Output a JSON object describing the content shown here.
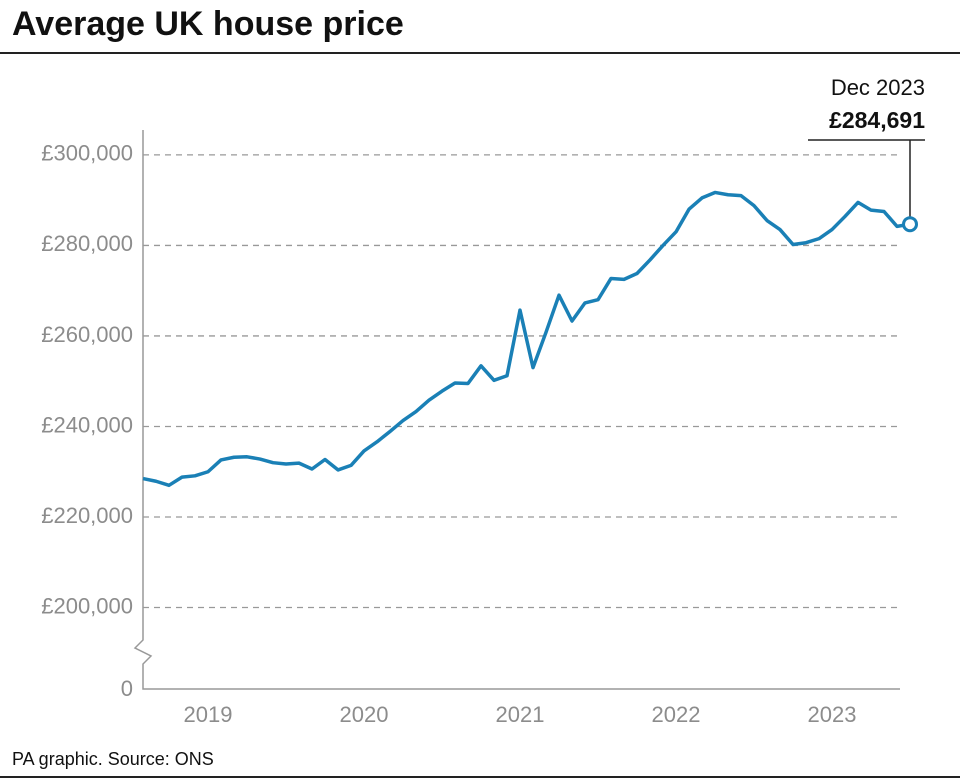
{
  "chart_data": {
    "type": "line",
    "title": "Average UK house price",
    "source": "PA graphic. Source: ONS",
    "categories": [
      null,
      null,
      null,
      null,
      null,
      "2019",
      null,
      null,
      null,
      null,
      null,
      null,
      null,
      null,
      null,
      null,
      null,
      "2020",
      null,
      null,
      null,
      null,
      null,
      null,
      null,
      null,
      null,
      null,
      null,
      "2021",
      null,
      null,
      null,
      null,
      null,
      null,
      null,
      null,
      null,
      null,
      null,
      "2022",
      null,
      null,
      null,
      null,
      null,
      null,
      null,
      null,
      null,
      null,
      null,
      "2023",
      null,
      null,
      null,
      null,
      null,
      null
    ],
    "series": [
      {
        "name": "Average UK house price",
        "color": "#1a80b6",
        "values": [
          228500,
          227900,
          227000,
          228800,
          229100,
          230000,
          232600,
          233200,
          233300,
          232800,
          232000,
          231700,
          231900,
          230600,
          232700,
          230400,
          231400,
          234600,
          236600,
          238900,
          241300,
          243300,
          245800,
          247800,
          249600,
          249500,
          253400,
          250200,
          251200,
          265700,
          253000,
          260800,
          269000,
          263300,
          267300,
          268000,
          272700,
          272500,
          273800,
          276800,
          280000,
          283000,
          288000,
          290500,
          291700,
          291200,
          291000,
          288800,
          285500,
          283500,
          280200,
          280600,
          281500,
          283500,
          286400,
          289500,
          287800,
          287500,
          284200,
          284691
        ],
        "value_labels": [
          null,
          null,
          null,
          null,
          null,
          null,
          null,
          null,
          null,
          null,
          null,
          null,
          null,
          null,
          null,
          null,
          null,
          null,
          null,
          null,
          null,
          null,
          null,
          null,
          null,
          null,
          null,
          null,
          null,
          null,
          null,
          null,
          null,
          null,
          null,
          null,
          null,
          null,
          null,
          null,
          null,
          null,
          null,
          null,
          null,
          null,
          null,
          null,
          null,
          null,
          null,
          null,
          null,
          null,
          null,
          null,
          null,
          null,
          null,
          "£284,691"
        ]
      }
    ],
    "annotation": "Dec 2023",
    "ylim": [
      182000,
      305500
    ],
    "yticks": [
      {
        "value": 200000,
        "label": "£200,000"
      },
      {
        "value": 220000,
        "label": "£220,000"
      },
      {
        "value": 240000,
        "label": "£240,000"
      },
      {
        "value": 260000,
        "label": "£260,000"
      },
      {
        "value": 280000,
        "label": "£280,000"
      },
      {
        "value": 300000,
        "label": "£300,000"
      }
    ],
    "y_break_label": "0",
    "grid": true
  }
}
